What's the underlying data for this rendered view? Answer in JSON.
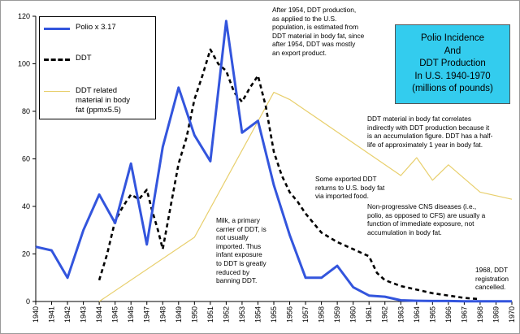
{
  "chart_data": {
    "type": "line",
    "title": "Polio Incidence And DDT Production In U.S. 1940-1970 (millions of pounds)",
    "title_lines": [
      "Polio Incidence",
      "And",
      "DDT Production",
      "In U.S. 1940-1970",
      "(millions of pounds)"
    ],
    "xlabel": "",
    "ylabel": "",
    "ylim": [
      0,
      120
    ],
    "yticks": [
      0,
      20,
      40,
      60,
      80,
      100,
      120
    ],
    "xlim": [
      1940,
      1970
    ],
    "categories": [
      "1940",
      "1941",
      "1942",
      "1943",
      "1944",
      "1945",
      "1946",
      "1947",
      "1948",
      "1949",
      "1950",
      "1951",
      "1952",
      "1953",
      "1954",
      "1955",
      "1956",
      "1957",
      "1958",
      "1959",
      "1960",
      "1961",
      "1962",
      "1963",
      "1964",
      "1965",
      "1966",
      "1967",
      "1968",
      "1969",
      "1970"
    ],
    "grid": false,
    "legend_position": "top-left",
    "series": [
      {
        "name": "Polio x 3.17",
        "color": "#3355dd",
        "style": "solid",
        "points": [
          [
            1940,
            23
          ],
          [
            1941,
            21.5
          ],
          [
            1942,
            10
          ],
          [
            1943,
            30
          ],
          [
            1944,
            45
          ],
          [
            1945,
            33
          ],
          [
            1946,
            58
          ],
          [
            1947,
            24
          ],
          [
            1948,
            65
          ],
          [
            1949,
            90
          ],
          [
            1950,
            70
          ],
          [
            1951,
            59
          ],
          [
            1952,
            118
          ],
          [
            1953,
            71
          ],
          [
            1954,
            76
          ],
          [
            1955,
            49
          ],
          [
            1956,
            28
          ],
          [
            1957,
            10
          ],
          [
            1958,
            10
          ],
          [
            1959,
            15
          ],
          [
            1960,
            6
          ],
          [
            1961,
            2.5
          ],
          [
            1962,
            2
          ],
          [
            1963,
            0.5
          ],
          [
            1964,
            0.3
          ],
          [
            1965,
            0.2
          ],
          [
            1966,
            0.2
          ],
          [
            1967,
            0.1
          ],
          [
            1968,
            0.1
          ],
          [
            1969,
            0.1
          ],
          [
            1970,
            0.1
          ]
        ]
      },
      {
        "name": "DDT",
        "color": "#000000",
        "style": "dashed",
        "points": [
          [
            1944,
            9
          ],
          [
            1944.5,
            20
          ],
          [
            1945,
            34
          ],
          [
            1945.5,
            40
          ],
          [
            1946,
            45
          ],
          [
            1946.5,
            43
          ],
          [
            1947,
            47
          ],
          [
            1947.3,
            39
          ],
          [
            1947.7,
            30
          ],
          [
            1948,
            22
          ],
          [
            1948.5,
            40
          ],
          [
            1949,
            58
          ],
          [
            1949.5,
            69
          ],
          [
            1950,
            85
          ],
          [
            1950.5,
            95
          ],
          [
            1951,
            106
          ],
          [
            1951.5,
            100
          ],
          [
            1952,
            97
          ],
          [
            1952.5,
            88
          ],
          [
            1953,
            84
          ],
          [
            1953.5,
            90
          ],
          [
            1954,
            95
          ],
          [
            1954.5,
            82
          ],
          [
            1955,
            63
          ],
          [
            1955.5,
            53
          ],
          [
            1956,
            46
          ],
          [
            1956.5,
            42
          ],
          [
            1957,
            37
          ],
          [
            1958,
            29
          ],
          [
            1959,
            25
          ],
          [
            1960,
            22
          ],
          [
            1961,
            19
          ],
          [
            1961.5,
            12
          ],
          [
            1962,
            9
          ],
          [
            1963,
            6.5
          ],
          [
            1964,
            5
          ],
          [
            1965,
            3.5
          ],
          [
            1966,
            2.5
          ],
          [
            1967,
            1.5
          ],
          [
            1968,
            1
          ]
        ]
      },
      {
        "name": "DDT related material in body fat (ppmx5.5)",
        "color": "#e8cf6c",
        "style": "solid",
        "points": [
          [
            1944,
            0
          ],
          [
            1950,
            27
          ],
          [
            1955,
            88
          ],
          [
            1956,
            85
          ],
          [
            1963,
            53
          ],
          [
            1964,
            60.5
          ],
          [
            1965,
            51
          ],
          [
            1966,
            57.5
          ],
          [
            1968,
            46
          ],
          [
            1970,
            43
          ]
        ]
      }
    ],
    "legend": [
      {
        "label": "Polio x 3.17",
        "color": "#3355dd",
        "style": "solid"
      },
      {
        "label": "DDT",
        "color": "#000000",
        "style": "dashed"
      },
      {
        "label": "DDT related material in body fat (ppmx5.5)",
        "color": "#e8cf6c",
        "style": "solid"
      }
    ],
    "legend_lines": [
      [
        "Polio x 3.17"
      ],
      [
        "DDT"
      ],
      [
        "DDT related",
        "material in body",
        "fat (ppmx5.5)"
      ]
    ],
    "annotations": [
      {
        "id": "ann-1954",
        "lines": [
          "After 1954, DDT production,",
          "as applied to the U.S.",
          "population, is estimated from",
          "DDT material in body fat, since",
          "after 1954, DDT was mostly",
          "an export product."
        ]
      },
      {
        "id": "ann-halflife",
        "lines": [
          "DDT material in body fat correlates",
          "indirectly with DDT production because it",
          "is an accumulation figure. DDT has a half-",
          "life of approximately 1 year in body fat."
        ]
      },
      {
        "id": "ann-exported",
        "lines": [
          "Some exported DDT",
          "returns to U.S. body fat",
          "via imported food."
        ]
      },
      {
        "id": "ann-cns",
        "lines": [
          "Non-progressive CNS diseases (i.e.,",
          "polio, as opposed to CFS) are usually a",
          "function of immediate exposure, not",
          "accumulation in body fat."
        ]
      },
      {
        "id": "ann-milk",
        "lines": [
          "Milk, a primary",
          "carrier of DDT, is",
          "not usually",
          "imported. Thus",
          "infant exposure",
          "to DDT is greatly",
          "reduced by",
          "banning DDT."
        ]
      },
      {
        "id": "ann-1968",
        "lines": [
          "1968, DDT",
          "registration",
          "cancelled."
        ]
      }
    ]
  }
}
